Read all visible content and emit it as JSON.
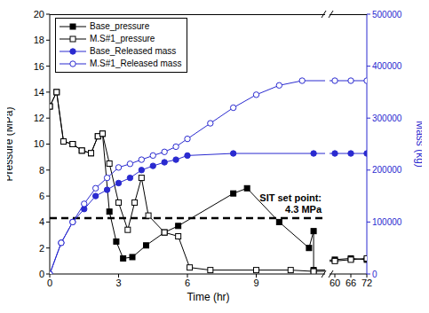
{
  "chart_data": {
    "type": "line",
    "xlabel": "Time (hr)",
    "ylabel": "Pressure (MPa)",
    "y2label": "Mass (kg)",
    "ylim": [
      0,
      20
    ],
    "yticks": [
      0,
      2,
      4,
      6,
      8,
      10,
      12,
      14,
      16,
      18,
      20
    ],
    "y2lim": [
      0,
      500000
    ],
    "y2ticks": [
      0,
      100000,
      200000,
      300000,
      400000,
      500000
    ],
    "grid": false,
    "legend": "upper left",
    "panels": [
      {
        "xlim": [
          0,
          12
        ],
        "xticks": [
          0,
          3,
          6,
          9
        ]
      },
      {
        "xlim": [
          58,
          72
        ],
        "xticks": [
          60,
          66,
          72
        ]
      }
    ],
    "reference_line": {
      "y": 4.3,
      "label": [
        "SIT set point:",
        "4.3 MPa"
      ]
    },
    "series": [
      {
        "name": "Base_pressure",
        "color": "#000000",
        "marker": "filled_square",
        "line_style": "solid",
        "x": [
          0,
          0.3,
          0.6,
          1.0,
          1.4,
          1.8,
          2.1,
          2.3,
          2.6,
          2.9,
          3.2,
          3.6,
          4.2,
          5.0,
          5.6,
          8.0,
          8.6,
          10.0,
          11.3,
          11.5,
          11.5,
          60,
          66,
          72
        ],
        "values": [
          12.9,
          14.0,
          10.2,
          10.0,
          9.5,
          9.3,
          10.6,
          10.8,
          4.8,
          2.5,
          1.2,
          1.3,
          2.2,
          3.2,
          3.7,
          6.2,
          6.6,
          4.0,
          2.0,
          3.3,
          0.3,
          1.1,
          1.2,
          1.1
        ]
      },
      {
        "name": "M.S#1_pressure",
        "color": "#000000",
        "marker": "open_square",
        "line_style": "solid",
        "x": [
          0,
          0.3,
          0.6,
          1.0,
          1.4,
          1.8,
          2.1,
          2.3,
          2.6,
          3.0,
          3.4,
          3.7,
          4.0,
          4.3,
          5.0,
          5.6,
          6.1,
          7.0,
          9.0,
          10.5,
          11.5,
          60,
          66,
          72
        ],
        "values": [
          12.9,
          14.0,
          10.2,
          10.0,
          9.5,
          9.3,
          10.6,
          10.8,
          8.5,
          5.5,
          3.4,
          5.5,
          7.4,
          4.5,
          3.2,
          2.9,
          0.5,
          0.3,
          0.3,
          0.3,
          0.2,
          1.0,
          1.1,
          1.2
        ]
      },
      {
        "name": "Base_Released mass",
        "color": "#2a2ad0",
        "marker": "filled_circle",
        "line_style": "solid",
        "axis": "y2",
        "x": [
          0,
          0.5,
          1.0,
          1.5,
          2.0,
          2.5,
          3.0,
          3.5,
          4.0,
          4.5,
          5.0,
          5.5,
          6.0,
          8.0,
          11.5,
          60,
          66,
          72
        ],
        "values": [
          0,
          60000,
          100000,
          125000,
          150000,
          162000,
          175000,
          185000,
          200000,
          208000,
          215000,
          220000,
          228000,
          232000,
          232000,
          232000,
          232000,
          232000
        ]
      },
      {
        "name": "M.S#1_Released mass",
        "color": "#2a2ad0",
        "marker": "open_circle",
        "line_style": "solid",
        "axis": "y2",
        "x": [
          0,
          0.5,
          1.0,
          1.5,
          2.0,
          2.5,
          3.0,
          3.5,
          4.0,
          4.5,
          5.0,
          5.5,
          6.0,
          7.0,
          8.0,
          9.0,
          10.0,
          11.0,
          60,
          66,
          72
        ],
        "values": [
          0,
          60000,
          100000,
          135000,
          165000,
          185000,
          205000,
          212000,
          220000,
          228000,
          235000,
          245000,
          260000,
          290000,
          320000,
          345000,
          363000,
          372000,
          372000,
          372000,
          372000
        ]
      }
    ]
  }
}
